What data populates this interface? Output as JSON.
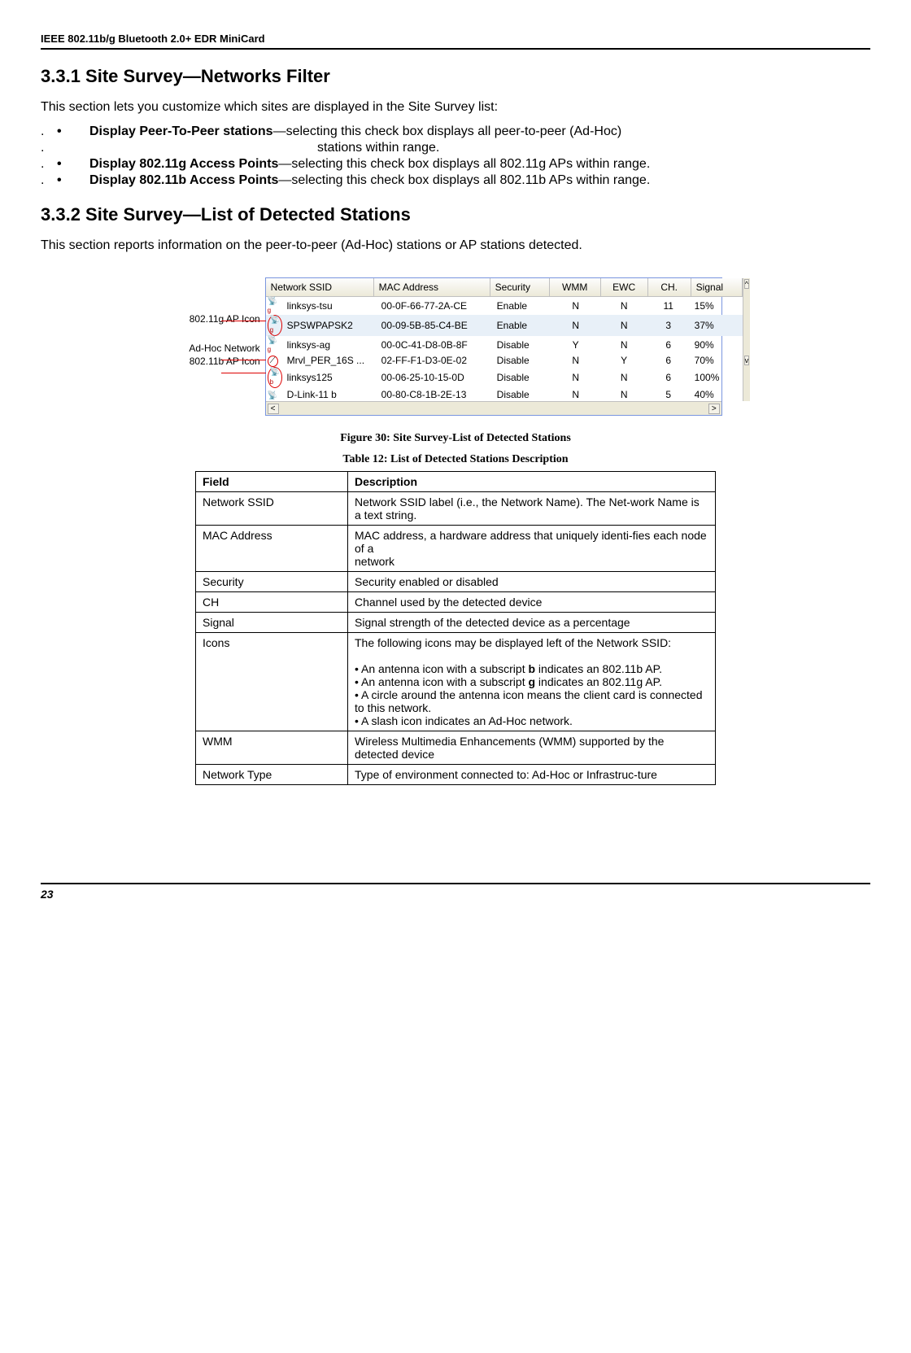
{
  "header": {
    "title": "IEEE 802.11b/g Bluetooth 2.0+ EDR MiniCard"
  },
  "section1": {
    "heading": "3.3.1 Site Survey—Networks Filter",
    "intro": "This section lets you customize which sites are displayed in the Site Survey list:",
    "bullets": [
      {
        "bold": "Display Peer-To-Peer stations",
        "rest": "—selecting this check box displays all peer-to-peer (Ad-Hoc)"
      },
      {
        "continuation": "stations within range."
      },
      {
        "bold": "Display 802.11g Access Points",
        "rest": "—selecting this check box displays all 802.11g APs within range."
      },
      {
        "bold": "Display 802.11b Access Points",
        "rest": "—selecting this check box displays all 802.11b APs within range."
      }
    ]
  },
  "section2": {
    "heading": "3.3.2 Site Survey—List of Detected Stations",
    "intro": "This section reports information on the peer-to-peer (Ad-Hoc) stations or AP stations detected."
  },
  "labels": {
    "l1": "802.11g AP Icon",
    "l2": "Ad-Hoc Network",
    "l3": "802.11b AP Icon"
  },
  "grid": {
    "headers": {
      "ssid": "Network SSID",
      "mac": "MAC Address",
      "sec": "Security",
      "wmm": "WMM",
      "ewc": "EWC",
      "ch": "CH.",
      "sig": "Signal"
    },
    "rows": [
      {
        "icon": "g",
        "ssid": "linksys-tsu",
        "mac": "00-0F-66-77-2A-CE",
        "sec": "Enable",
        "wmm": "N",
        "ewc": "N",
        "ch": "11",
        "sig": "15%"
      },
      {
        "icon": "g-circle",
        "ssid": "SPSWPAPSK2",
        "mac": "00-09-5B-85-C4-BE",
        "sec": "Enable",
        "wmm": "N",
        "ewc": "N",
        "ch": "3",
        "sig": "37%",
        "hl": true
      },
      {
        "icon": "g",
        "ssid": "linksys-ag",
        "mac": "00-0C-41-D8-0B-8F",
        "sec": "Disable",
        "wmm": "Y",
        "ewc": "N",
        "ch": "6",
        "sig": "90%"
      },
      {
        "icon": "adhoc",
        "ssid": "Mrvl_PER_16S ...",
        "mac": "02-FF-F1-D3-0E-02",
        "sec": "Disable",
        "wmm": "N",
        "ewc": "Y",
        "ch": "6",
        "sig": "70%"
      },
      {
        "icon": "b-circle",
        "ssid": "linksys125",
        "mac": "00-06-25-10-15-0D",
        "sec": "Disable",
        "wmm": "N",
        "ewc": "N",
        "ch": "6",
        "sig": "100%"
      },
      {
        "icon": "plain",
        "ssid": "D-Link-11 b",
        "mac": "00-80-C8-1B-2E-13",
        "sec": "Disable",
        "wmm": "N",
        "ewc": "N",
        "ch": "5",
        "sig": "40%"
      }
    ]
  },
  "figcap": "Figure 30: Site Survey-List of Detected Stations",
  "tabcap": "Table 12: List of Detected Stations Description",
  "desc": {
    "head": {
      "field": "Field",
      "description": "Description"
    },
    "rows": [
      {
        "f": "Network SSID",
        "d": "Network SSID label (i.e., the Network Name). The Net-work Name is a text string."
      },
      {
        "f": "MAC Address",
        "d": "MAC address, a hardware address that uniquely identi-fies each node of a\nnetwork"
      },
      {
        "f": "Security",
        "d": "Security enabled or disabled"
      },
      {
        "f": "CH",
        "d": "Channel used by the detected device"
      },
      {
        "f": "Signal",
        "d": "Signal strength of the detected device as a percentage"
      },
      {
        "f": "Icons",
        "d": "ICONS_SPECIAL"
      },
      {
        "f": "WMM",
        "d": "Wireless Multimedia Enhancements (WMM) supported by the detected device"
      },
      {
        "f": "Network Type",
        "d": "Type of environment connected to: Ad-Hoc or Infrastruc-ture"
      }
    ],
    "icons_text": {
      "intro": "The following icons may be displayed left of the Network SSID:",
      "b1a": "• An antenna icon with a subscript ",
      "b1b": "b",
      "b1c": " indicates an 802.11b AP.",
      "b2a": "• An antenna icon with a subscript ",
      "b2b": "g",
      "b2c": " indicates an 802.11g AP.",
      "b3": "• A circle around the antenna icon means the client card is connected to this network.",
      "b4": "• A slash icon indicates an Ad-Hoc network."
    }
  },
  "footer": {
    "page": "23"
  }
}
